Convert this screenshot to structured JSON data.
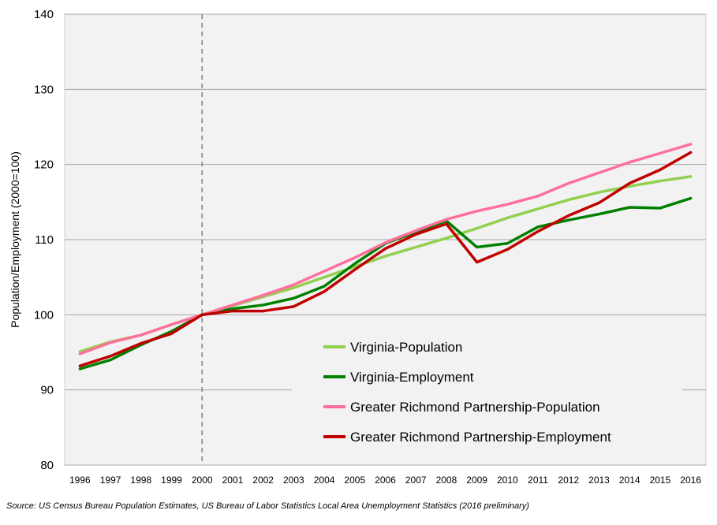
{
  "chart_data": {
    "type": "line",
    "title": "",
    "xlabel": "",
    "ylabel": "Population/Employment (2000=100)",
    "x": [
      1996,
      1997,
      1998,
      1999,
      2000,
      2001,
      2002,
      2003,
      2004,
      2005,
      2006,
      2007,
      2008,
      2009,
      2010,
      2011,
      2012,
      2013,
      2014,
      2015,
      2016
    ],
    "xticks": [
      "1996",
      "1997",
      "1998",
      "1999",
      "2000",
      "2001",
      "2002",
      "2003",
      "2004",
      "2005",
      "2006",
      "2007",
      "2008",
      "2009",
      "2010",
      "2011",
      "2012",
      "2013",
      "2014",
      "2015",
      "2016"
    ],
    "ylim": [
      80,
      140
    ],
    "yticks": [
      80,
      90,
      100,
      110,
      120,
      130,
      140
    ],
    "grid": "horizontal",
    "reference_line_x": 2000,
    "legend_position": "bottom-center",
    "series": [
      {
        "name": "Virginia-Population",
        "color": "#92d050",
        "values": [
          95.1,
          96.4,
          97.3,
          98.7,
          100.0,
          101.2,
          102.4,
          103.6,
          105.0,
          106.4,
          107.8,
          109.0,
          110.2,
          111.5,
          112.9,
          114.1,
          115.3,
          116.3,
          117.1,
          117.8,
          118.4
        ]
      },
      {
        "name": "Virginia-Employment",
        "color": "#008000",
        "values": [
          92.8,
          94.0,
          96.0,
          97.8,
          100.0,
          100.8,
          101.3,
          102.2,
          103.8,
          106.8,
          109.5,
          111.0,
          112.5,
          109.0,
          109.5,
          111.7,
          112.6,
          113.4,
          114.3,
          114.2,
          115.5
        ]
      },
      {
        "name": "Greater Richmond Partnership-Population",
        "color": "#ff6f9c",
        "values": [
          94.8,
          96.3,
          97.3,
          98.7,
          100.0,
          101.3,
          102.6,
          104.0,
          105.8,
          107.6,
          109.6,
          111.2,
          112.7,
          113.8,
          114.7,
          115.8,
          117.5,
          118.9,
          120.3,
          121.5,
          122.7
        ]
      },
      {
        "name": "Greater Richmond Partnership-Employment",
        "color": "#c00000",
        "values": [
          93.2,
          94.5,
          96.2,
          97.5,
          100.0,
          100.5,
          100.5,
          101.1,
          103.1,
          106.0,
          108.8,
          110.7,
          112.1,
          107.0,
          108.7,
          111.1,
          113.2,
          114.9,
          117.5,
          119.3,
          121.6
        ]
      }
    ]
  },
  "source": "Source: US Census Bureau Population Estimates, US Bureau of Labor Statistics Local Area Unemployment Statistics (2016 preliminary)"
}
